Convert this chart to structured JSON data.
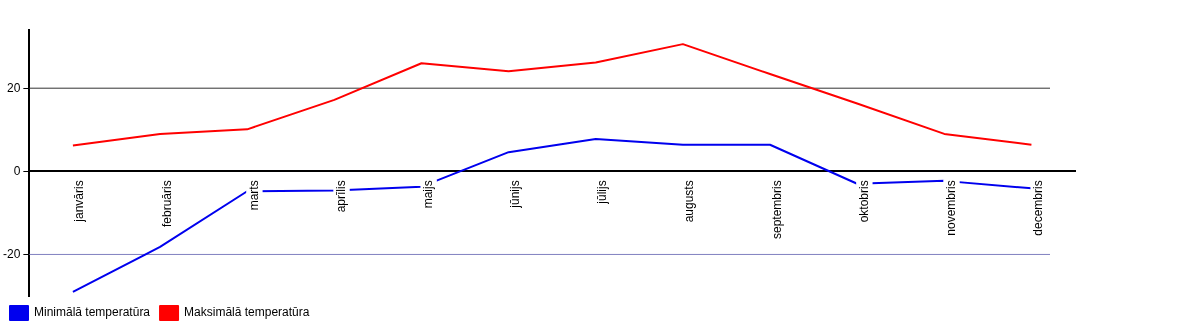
{
  "chart_data": {
    "type": "line",
    "categories": [
      "janvāris",
      "februāris",
      "marts",
      "aprīlis",
      "maijs",
      "jūnijs",
      "jūlijs",
      "augusts",
      "septembris",
      "oktobris",
      "novembris",
      "decembris"
    ],
    "series": [
      {
        "name": "Minimālā temperatūra",
        "color": "#0000ee",
        "values": [
          -29,
          -18.2,
          -4.8,
          -4.6,
          -3.7,
          4.6,
          7.8,
          6.4,
          6.4,
          -3,
          -2.3,
          -4.1
        ]
      },
      {
        "name": "Maksimālā temperatūra",
        "color": "#ff0000",
        "values": [
          6.2,
          9,
          10.1,
          17.2,
          26,
          24.1,
          26.2,
          30.6,
          23.4,
          16.3,
          9,
          6.4
        ]
      }
    ],
    "ylim": [
      -30,
      34
    ],
    "yticks": [
      -20,
      0,
      20
    ],
    "ref_lines": [
      {
        "axis": "y",
        "value": 20,
        "color": "#333333"
      },
      {
        "axis": "y",
        "value": -20,
        "color": "#8080c0"
      }
    ],
    "legend": "bottom left",
    "marker": "none"
  }
}
